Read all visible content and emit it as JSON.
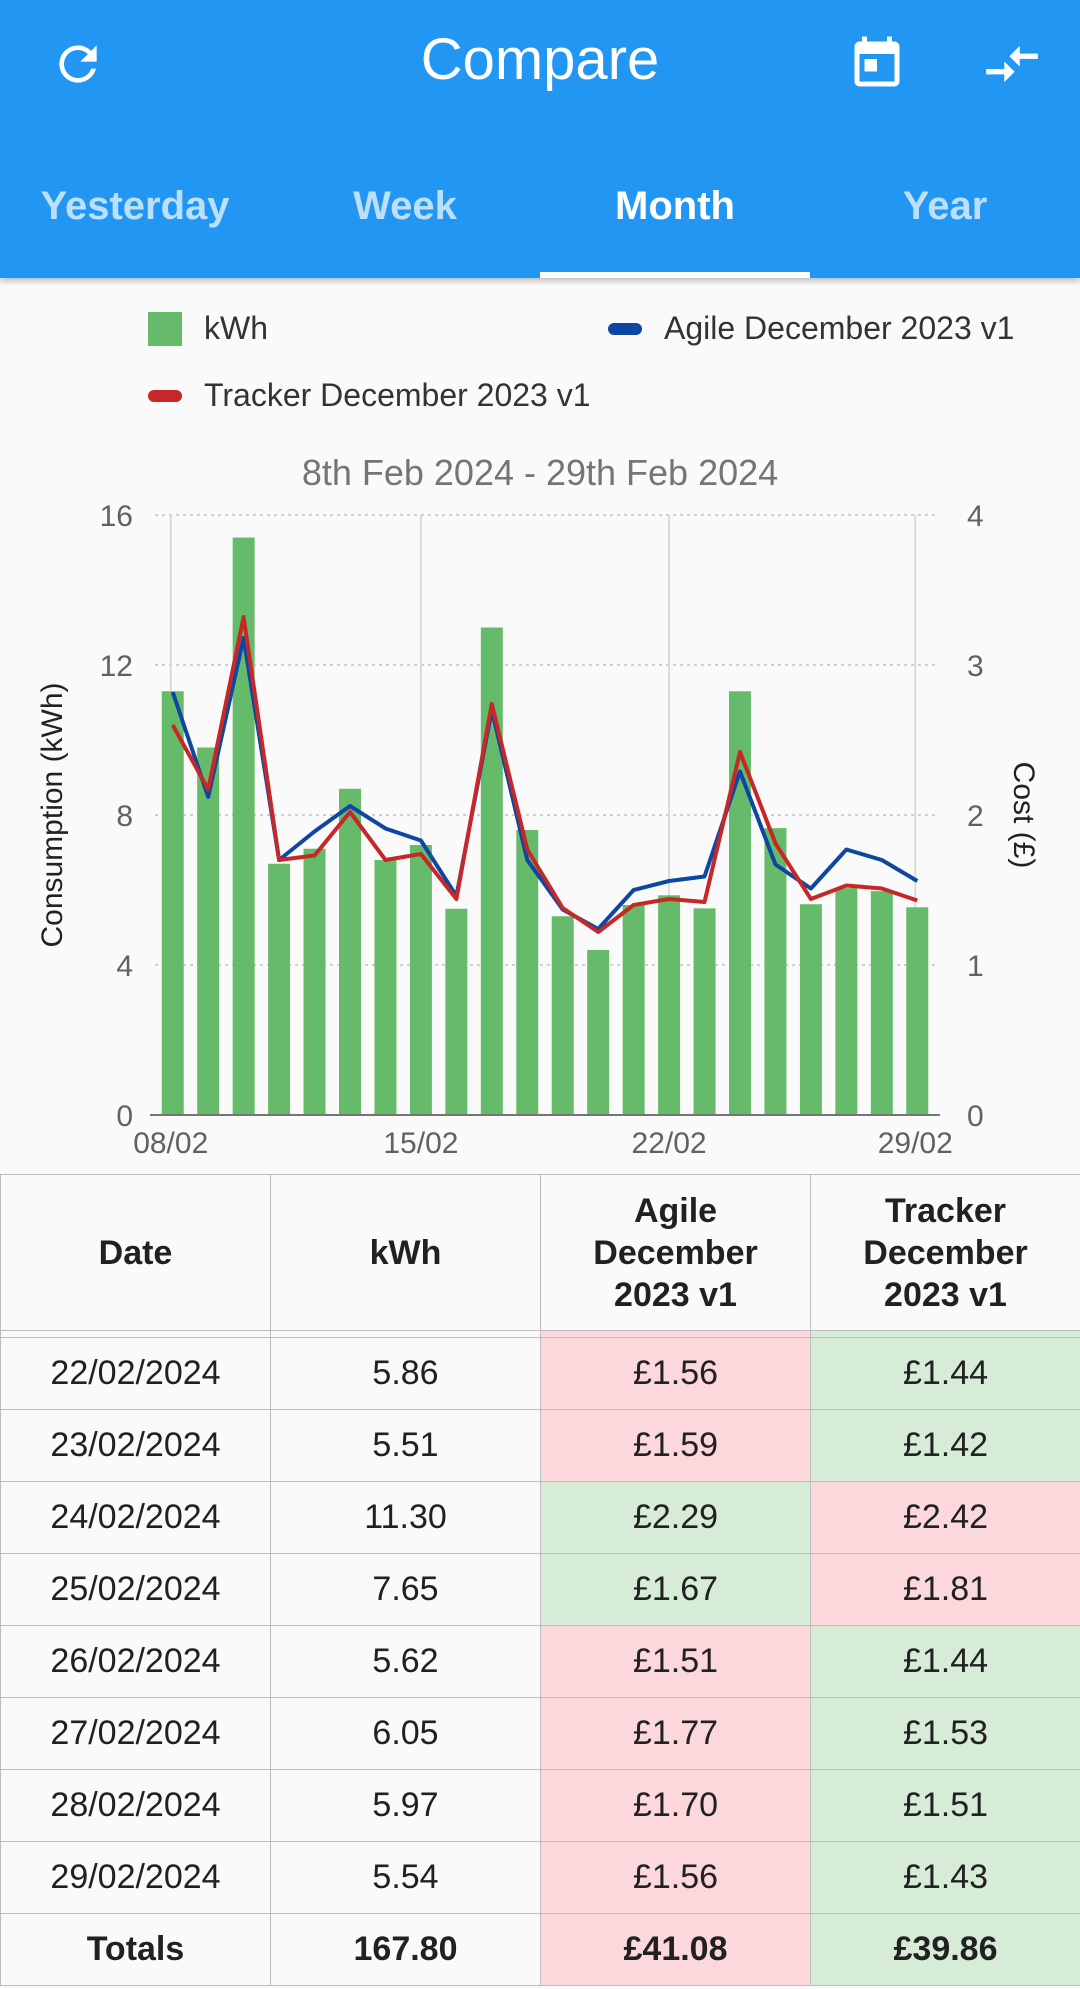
{
  "header": {
    "title": "Compare",
    "tabs": [
      {
        "label": "Yesterday",
        "active": false
      },
      {
        "label": "Week",
        "active": false
      },
      {
        "label": "Month",
        "active": true
      },
      {
        "label": "Year",
        "active": false
      }
    ],
    "icons": [
      "refresh-icon",
      "calendar-icon",
      "compare-arrows-icon"
    ]
  },
  "legend": {
    "kwh": "kWh",
    "agile": "Agile December 2023 v1",
    "tracker": "Tracker December 2023 v1"
  },
  "colors": {
    "appbar": "#2196f3",
    "bars": "#66bb6a",
    "agile": "#0d47a1",
    "tracker": "#c62828",
    "cheaper": "#d6ecd6",
    "dearer": "#fcd8dc"
  },
  "chart_data": {
    "type": "bar",
    "title": "8th Feb 2024 - 29th Feb 2024",
    "ylabel": "Consumption (kWh)",
    "y2label": "Cost (£)",
    "ylim": [
      0,
      16
    ],
    "y2lim": [
      0,
      4
    ],
    "yticks": [
      "0",
      "4",
      "8",
      "12",
      "16"
    ],
    "y2ticks": [
      "0",
      "1",
      "2",
      "3",
      "4"
    ],
    "xticks": [
      "08/02",
      "15/02",
      "22/02",
      "29/02"
    ],
    "categories": [
      "08/02",
      "09/02",
      "10/02",
      "11/02",
      "12/02",
      "13/02",
      "14/02",
      "15/02",
      "16/02",
      "17/02",
      "18/02",
      "19/02",
      "20/02",
      "21/02",
      "22/02",
      "23/02",
      "24/02",
      "25/02",
      "26/02",
      "27/02",
      "28/02",
      "29/02"
    ],
    "series": [
      {
        "name": "kWh",
        "axis": "left",
        "values": [
          11.3,
          9.8,
          15.4,
          6.7,
          7.1,
          8.7,
          6.8,
          7.2,
          5.5,
          13.0,
          7.6,
          5.3,
          4.4,
          5.6,
          5.86,
          5.51,
          11.3,
          7.65,
          5.62,
          6.05,
          5.97,
          5.54
        ]
      },
      {
        "name": "Agile December 2023 v1",
        "axis": "right",
        "values": [
          2.82,
          2.12,
          3.18,
          1.7,
          1.89,
          2.06,
          1.91,
          1.83,
          1.46,
          2.7,
          1.7,
          1.37,
          1.24,
          1.5,
          1.56,
          1.59,
          2.29,
          1.67,
          1.51,
          1.77,
          1.7,
          1.56
        ]
      },
      {
        "name": "Tracker December 2023 v1",
        "axis": "right",
        "values": [
          2.6,
          2.17,
          3.32,
          1.7,
          1.73,
          2.02,
          1.7,
          1.74,
          1.44,
          2.74,
          1.77,
          1.38,
          1.22,
          1.4,
          1.44,
          1.42,
          2.42,
          1.81,
          1.44,
          1.53,
          1.51,
          1.43
        ]
      }
    ]
  },
  "table": {
    "headers": [
      "Date",
      "kWh",
      "Agile December 2023 v1",
      "Tracker December 2023 v1"
    ],
    "rows": [
      {
        "date": "22/02/2024",
        "kwh": "5.86",
        "agile": "£1.56",
        "tracker": "£1.44",
        "agile_cheaper": false
      },
      {
        "date": "23/02/2024",
        "kwh": "5.51",
        "agile": "£1.59",
        "tracker": "£1.42",
        "agile_cheaper": false
      },
      {
        "date": "24/02/2024",
        "kwh": "11.30",
        "agile": "£2.29",
        "tracker": "£2.42",
        "agile_cheaper": true
      },
      {
        "date": "25/02/2024",
        "kwh": "7.65",
        "agile": "£1.67",
        "tracker": "£1.81",
        "agile_cheaper": true
      },
      {
        "date": "26/02/2024",
        "kwh": "5.62",
        "agile": "£1.51",
        "tracker": "£1.44",
        "agile_cheaper": false
      },
      {
        "date": "27/02/2024",
        "kwh": "6.05",
        "agile": "£1.77",
        "tracker": "£1.53",
        "agile_cheaper": false
      },
      {
        "date": "28/02/2024",
        "kwh": "5.97",
        "agile": "£1.70",
        "tracker": "£1.51",
        "agile_cheaper": false
      },
      {
        "date": "29/02/2024",
        "kwh": "5.54",
        "agile": "£1.56",
        "tracker": "£1.43",
        "agile_cheaper": false
      }
    ],
    "totals": {
      "label": "Totals",
      "kwh": "167.80",
      "agile": "£41.08",
      "tracker": "£39.86",
      "agile_cheaper": false
    }
  }
}
